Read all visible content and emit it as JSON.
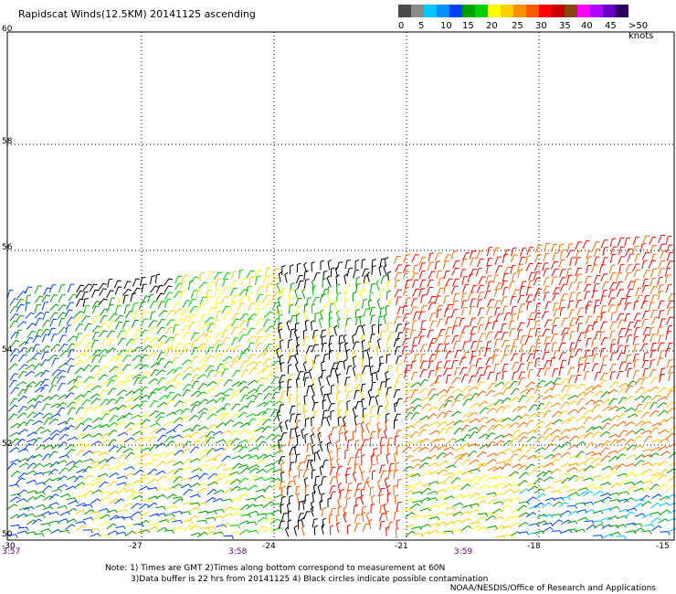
{
  "title": "Rapidscat Winds(12.5KM) 20141125 ascending",
  "color_scale": {
    "colors": [
      "#4a4a4a",
      "#8a8a8a",
      "#00c8ff",
      "#0090ff",
      "#0040ff",
      "#00a000",
      "#00d000",
      "#ffff00",
      "#ffd000",
      "#ff9000",
      "#ff5a00",
      "#ff0000",
      "#c80000",
      "#8b4513",
      "#ff00ff",
      "#b000ff",
      "#6a00c8",
      "#300060"
    ],
    "labels": [
      "0",
      "5",
      "10",
      "15",
      "20",
      "25",
      "30",
      "35",
      "40",
      "45",
      ">50 knots"
    ]
  },
  "map": {
    "lat_labels": [
      "60",
      "58",
      "56",
      "54",
      "52",
      "50"
    ],
    "lon_labels": [
      "-30",
      "-27",
      "-24",
      "-21",
      "-18",
      "-15"
    ],
    "time_labels": [
      "3:57",
      "3:58",
      "3:59"
    ]
  },
  "notes": {
    "line1": "Note: 1) Times are GMT 2)Times along bottom correspond to measurement at 60N",
    "line2": "3)Data buffer is 22 hrs from 20141125 4) Black circles indicate possible contamination"
  },
  "credit": "NOAA/NESDIS/Office of Research and Applications"
}
